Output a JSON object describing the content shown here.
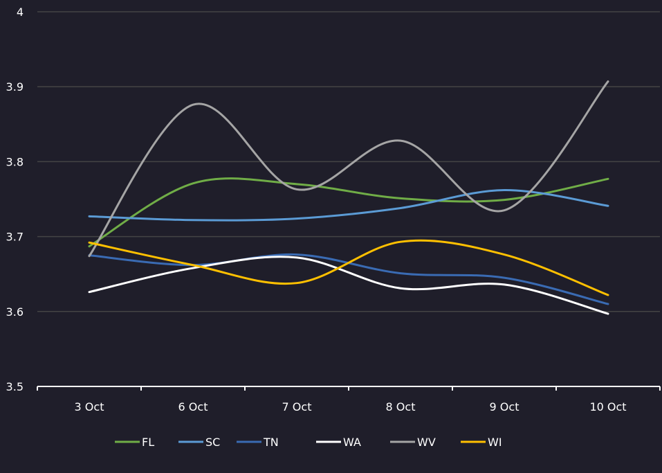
{
  "chart_data": {
    "type": "line",
    "title": "",
    "xlabel": "",
    "ylabel": "",
    "categories": [
      "3 Oct",
      "6 Oct",
      "7 Oct",
      "8 Oct",
      "9 Oct",
      "10 Oct"
    ],
    "ylim": [
      3.5,
      4
    ],
    "yticks": [
      "3.5",
      "3.6",
      "3.7",
      "3.8",
      "3.9",
      "4"
    ],
    "grid": true,
    "legend_position": "bottom",
    "smooth": true,
    "background": "#1f1e2a",
    "series": [
      {
        "name": "FL",
        "color": "#70ad47",
        "values": [
          3.687,
          3.771,
          3.77,
          3.751,
          3.749,
          3.777
        ]
      },
      {
        "name": "SC",
        "color": "#5b9bd5",
        "values": [
          3.727,
          3.722,
          3.724,
          3.738,
          3.762,
          3.741
        ]
      },
      {
        "name": "TN",
        "color": "#3a6bb3",
        "values": [
          3.675,
          3.662,
          3.676,
          3.651,
          3.645,
          3.61
        ]
      },
      {
        "name": "WA",
        "color": "#ffffff",
        "values": [
          3.626,
          3.658,
          3.672,
          3.631,
          3.636,
          3.597
        ]
      },
      {
        "name": "WV",
        "color": "#a5a5a5",
        "values": [
          3.674,
          3.876,
          3.763,
          3.828,
          3.735,
          3.907
        ]
      },
      {
        "name": "WI",
        "color": "#ffc000",
        "values": [
          3.692,
          3.662,
          3.638,
          3.693,
          3.676,
          3.622
        ]
      }
    ]
  }
}
